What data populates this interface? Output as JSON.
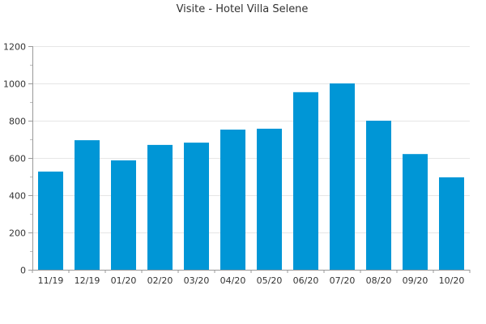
{
  "chart_data": {
    "type": "bar",
    "title": "Visite - Hotel Villa Selene",
    "categories": [
      "11/19",
      "12/19",
      "01/20",
      "02/20",
      "03/20",
      "04/20",
      "05/20",
      "06/20",
      "07/20",
      "08/20",
      "09/20",
      "10/20"
    ],
    "values": [
      527,
      695,
      587,
      670,
      682,
      752,
      757,
      953,
      1000,
      800,
      621,
      496
    ],
    "ylim": [
      0,
      1200
    ],
    "y_ticks": [
      0,
      200,
      400,
      600,
      800,
      1000,
      1200
    ],
    "xlabel": "",
    "ylabel": "",
    "grid": true,
    "legend": "none",
    "colors": {
      "bar": "#0096d6",
      "grid": "#e6e6e6",
      "axis": "#999999"
    }
  }
}
